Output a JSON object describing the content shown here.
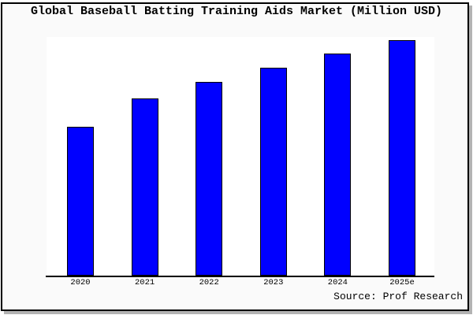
{
  "window": {
    "background": "#fafafa",
    "plot_background": "#ffffff",
    "frame_border_color": "#000000",
    "shadow_color": "#b3b3b3"
  },
  "chart_data": {
    "type": "bar",
    "title": "Global Baseball Batting Training Aids Market (Million USD)",
    "categories": [
      "2020",
      "2021",
      "2022",
      "2023",
      "2024",
      "2025e"
    ],
    "values": [
      63,
      75,
      82,
      88,
      94,
      100
    ],
    "values_note": "No y-axis ticks or data labels are shown in the chart; values are relative bar heights indexed to 2025e = 100, estimated from pixel heights.",
    "xlabel": "",
    "ylabel": "",
    "ylim": [
      0,
      101
    ],
    "grid": false,
    "legend": false,
    "bar_color": "#0000ff",
    "bar_border_color": "#000000",
    "axis_line_color": "#000000",
    "text_color": "#000000"
  },
  "footer": {
    "source": "Source: Prof Research"
  }
}
